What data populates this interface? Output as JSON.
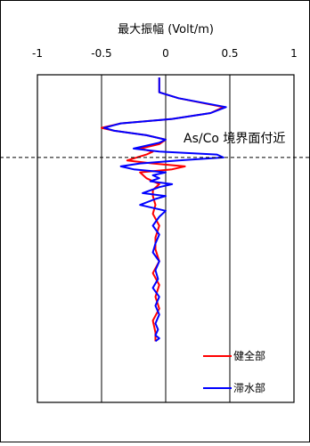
{
  "chart_data": {
    "type": "line",
    "title": "最大振幅 (Volt/m)",
    "xlabel": "最大振幅 (Volt/m)",
    "ylabel": "",
    "xlim": [
      -1,
      1
    ],
    "x_ticks": [
      "-1",
      "-0.5",
      "0",
      "0.5",
      "1"
    ],
    "x_tick_values": [
      -1,
      -0.5,
      0,
      0.5,
      1
    ],
    "grid": "vertical lines at x = -0.5, 0, 0.5",
    "legend_position": "bottom-right",
    "annotation": {
      "text": "As/Co 境界面付近",
      "line_style": "dashed",
      "relative_depth": 0.27
    },
    "series": [
      {
        "name": "健全部",
        "color": "#ff0000",
        "x": [
          -0.05,
          -0.05,
          -0.05,
          -0.05,
          0.1,
          0.45,
          0.35,
          0.05,
          -0.35,
          -0.5,
          -0.4,
          -0.15,
          0.0,
          -0.05,
          -0.2,
          -0.1,
          -0.15,
          -0.3,
          -0.1,
          0.15,
          0.05,
          -0.2,
          -0.15,
          -0.05,
          -0.1,
          -0.1,
          -0.08,
          -0.1,
          -0.05,
          -0.08,
          -0.08,
          -0.05,
          -0.1,
          -0.05,
          -0.08,
          -0.05,
          -0.1,
          -0.08,
          -0.08
        ],
        "depth": [
          0,
          0.02,
          0.04,
          0.05,
          0.07,
          0.1,
          0.12,
          0.14,
          0.155,
          0.17,
          0.18,
          0.195,
          0.21,
          0.225,
          0.24,
          0.25,
          0.26,
          0.28,
          0.29,
          0.3,
          0.31,
          0.32,
          0.34,
          0.36,
          0.38,
          0.4,
          0.43,
          0.46,
          0.5,
          0.54,
          0.58,
          0.62,
          0.66,
          0.7,
          0.74,
          0.78,
          0.82,
          0.86,
          0.89
        ]
      },
      {
        "name": "滞水部",
        "color": "#0000ff",
        "x": [
          -0.05,
          -0.05,
          -0.05,
          -0.05,
          0.1,
          0.47,
          0.35,
          0.05,
          -0.35,
          -0.48,
          -0.4,
          -0.15,
          0.0,
          -0.05,
          -0.25,
          -0.05,
          0.4,
          0.45,
          0.1,
          -0.2,
          -0.35,
          -0.25,
          0.0,
          -0.1,
          -0.05,
          -0.12,
          0.05,
          -0.05,
          -0.18,
          0.0,
          -0.08,
          -0.2,
          0.0,
          -0.05,
          -0.1,
          -0.05,
          -0.08,
          -0.1,
          -0.05,
          -0.08,
          -0.06,
          -0.1,
          -0.05,
          -0.08,
          -0.05,
          -0.08,
          -0.06,
          -0.08,
          -0.05,
          -0.08
        ],
        "depth": [
          0,
          0.02,
          0.04,
          0.05,
          0.07,
          0.1,
          0.12,
          0.14,
          0.155,
          0.17,
          0.18,
          0.195,
          0.21,
          0.22,
          0.24,
          0.25,
          0.26,
          0.27,
          0.28,
          0.29,
          0.3,
          0.31,
          0.32,
          0.33,
          0.34,
          0.35,
          0.36,
          0.37,
          0.39,
          0.4,
          0.41,
          0.43,
          0.45,
          0.47,
          0.5,
          0.53,
          0.56,
          0.59,
          0.62,
          0.65,
          0.68,
          0.71,
          0.74,
          0.77,
          0.8,
          0.83,
          0.85,
          0.87,
          0.88,
          0.89
        ]
      }
    ]
  }
}
